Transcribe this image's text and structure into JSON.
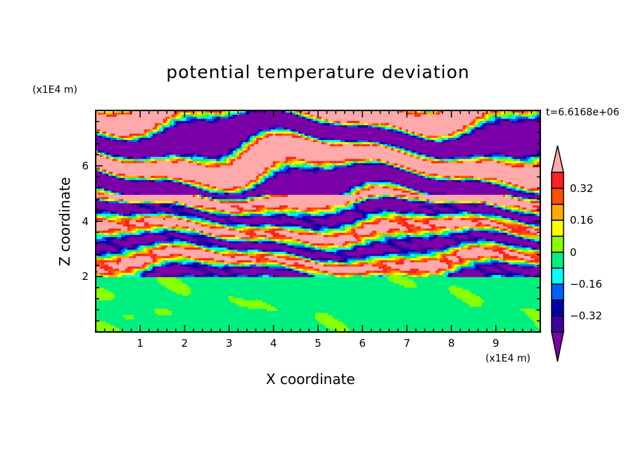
{
  "chart_data": {
    "type": "heatmap",
    "title": "potential temperature deviation",
    "xlabel": "X coordinate",
    "ylabel": "Z coordinate",
    "x_unit": "(x1E4 m)",
    "y_unit": "(x1E4 m)",
    "time_label": "t=6.6168e+06",
    "xlim": [
      0,
      10
    ],
    "ylim": [
      0,
      8
    ],
    "xticks": [
      "1",
      "2",
      "3",
      "4",
      "5",
      "6",
      "7",
      "8",
      "9"
    ],
    "yticks": [
      "2",
      "4",
      "6"
    ],
    "levels": [
      -0.4,
      -0.32,
      -0.24,
      -0.16,
      -0.08,
      0,
      0.08,
      0.16,
      0.24,
      0.32,
      0.4
    ],
    "colors": [
      "#7a00a8",
      "#3a00a0",
      "#0000a8",
      "#0060ff",
      "#00ffff",
      "#00f080",
      "#88ff00",
      "#ffff00",
      "#ffaa00",
      "#ff5000",
      "#ff2020",
      "#ffaaaa"
    ],
    "colorbar_labels": [
      "0.32",
      "0.16",
      "0",
      "-0.16",
      "-0.32"
    ],
    "colorbar_extend": "both"
  }
}
